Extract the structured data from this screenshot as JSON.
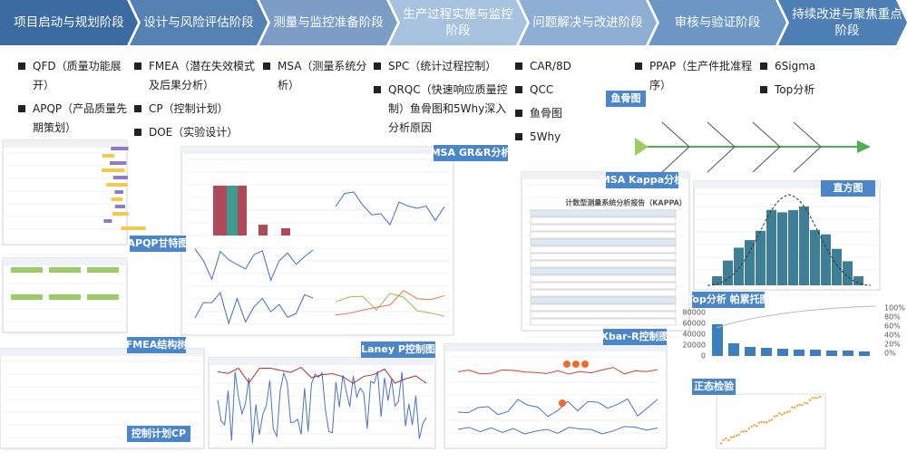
{
  "stages": [
    {
      "title": "项目启动与规划阶段",
      "items": [
        "QFD（质量功能展开）",
        "APQP（产品质量先期策划）"
      ]
    },
    {
      "title": "设计与风险评估阶段",
      "items": [
        "FMEA（潜在失效模式及后果分析）",
        "CP（控制计划）",
        "DOE（实验设计）"
      ]
    },
    {
      "title": "测量与监控准备阶段",
      "items": [
        "MSA（测量系统分析）"
      ]
    },
    {
      "title": "生产过程实施与监控阶段",
      "items": [
        "SPC（统计过程控制）",
        "QRQC（快速响应质量控制）鱼骨图和5Why深入分析原因"
      ]
    },
    {
      "title": "问题解决与改进阶段",
      "items": [
        "CAR/8D",
        "QCC",
        "鱼骨图",
        "5Why"
      ]
    },
    {
      "title": "审核与验证阶段",
      "items": [
        "PPAP（生产件批准程序）"
      ]
    },
    {
      "title": "持续改进与聚焦重点阶段",
      "items": [
        "6Sigma",
        "Top分析"
      ]
    }
  ],
  "panels": [
    {
      "label": "APQP甘特图"
    },
    {
      "label": "FMEA结构树"
    },
    {
      "label": "控制计划CP"
    },
    {
      "label": "MSA GR&R分析"
    },
    {
      "label": "Laney P控制图"
    },
    {
      "label": "MSA Kappa分析",
      "heading": "计数型测量系统分析报告（KAPPA）"
    },
    {
      "label": "Xbar-R控制图"
    },
    {
      "label": "鱼骨图"
    },
    {
      "label": "直方图"
    },
    {
      "label": "Top分析 帕累托图",
      "left_ticks": [
        "80000",
        "60000",
        "40000",
        "20000",
        "0"
      ],
      "right_ticks": [
        "100%",
        "80%",
        "60%",
        "40%",
        "20%",
        "0%"
      ]
    },
    {
      "label": "正态检验"
    }
  ]
}
